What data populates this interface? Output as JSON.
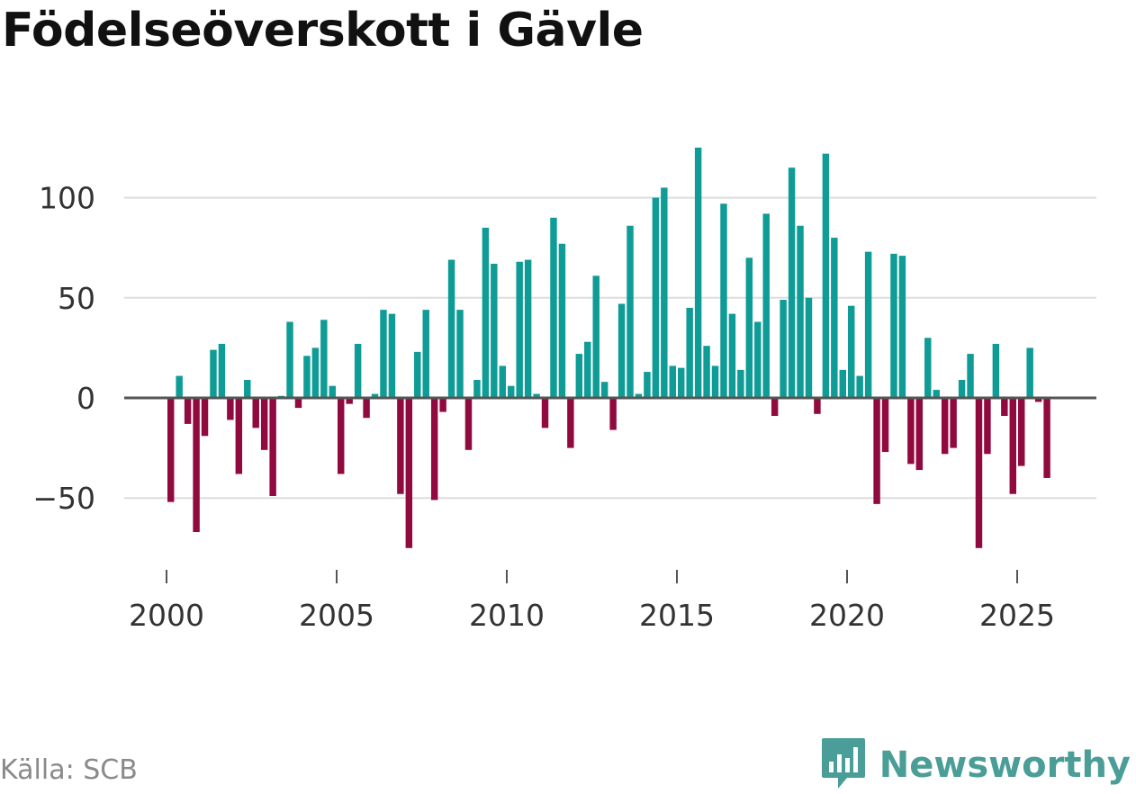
{
  "title": "Födelseöverskott i Gävle",
  "source": "Källa: SCB",
  "brand": {
    "name": "Newsworthy",
    "icon": "newsworthy-logo-icon",
    "color": "#4a9e97"
  },
  "colors": {
    "positive": "#0f9c96",
    "negative": "#910a3f",
    "grid": "#dddddd",
    "zero": "#555555",
    "text": "#333333"
  },
  "chart_data": {
    "type": "bar",
    "grid": true,
    "ylim": [
      -80,
      128
    ],
    "xlim": [
      1999.0,
      2027.0
    ],
    "x_ticks": [
      "2000",
      "2005",
      "2010",
      "2015",
      "2020",
      "2025"
    ],
    "y_ticks": [
      "100",
      "50",
      "0",
      "−50"
    ],
    "x": [
      2000.25,
      2000.5,
      2000.75,
      2001,
      2001.25,
      2001.5,
      2001.75,
      2002,
      2002.25,
      2002.5,
      2002.75,
      2003,
      2003.25,
      2003.5,
      2003.75,
      2004,
      2004.25,
      2004.5,
      2004.75,
      2005,
      2005.25,
      2005.5,
      2005.75,
      2006,
      2006.25,
      2006.5,
      2006.75,
      2007,
      2007.25,
      2007.5,
      2007.75,
      2008,
      2008.25,
      2008.5,
      2008.75,
      2009,
      2009.25,
      2009.5,
      2009.75,
      2010,
      2010.25,
      2010.5,
      2010.75,
      2011,
      2011.25,
      2011.5,
      2011.75,
      2012,
      2012.25,
      2012.5,
      2012.75,
      2013,
      2013.25,
      2013.5,
      2013.75,
      2014,
      2014.25,
      2014.5,
      2014.75,
      2015,
      2015.25,
      2015.5,
      2015.75,
      2016,
      2016.25,
      2016.5,
      2016.75,
      2017,
      2017.25,
      2017.5,
      2017.75,
      2018,
      2018.25,
      2018.5,
      2018.75,
      2019,
      2019.25,
      2019.5,
      2019.75,
      2020,
      2020.25,
      2020.5,
      2020.75,
      2021,
      2021.25,
      2021.5,
      2021.75,
      2022,
      2022.25,
      2022.5,
      2022.75,
      2023,
      2023.25,
      2023.5,
      2023.75,
      2024,
      2024.25,
      2024.5,
      2024.75,
      2025,
      2025.25,
      2025.5,
      2025.75,
      2026
    ],
    "values": [
      -52,
      11,
      -13,
      -67,
      -19,
      24,
      27,
      -11,
      -38,
      9,
      -15,
      -26,
      -49,
      1,
      38,
      -5,
      21,
      25,
      39,
      6,
      -38,
      -3,
      27,
      -10,
      2,
      44,
      42,
      -48,
      -75,
      23,
      44,
      -51,
      -7,
      69,
      44,
      -26,
      9,
      85,
      67,
      16,
      6,
      68,
      69,
      2,
      -15,
      90,
      77,
      -25,
      22,
      28,
      61,
      8,
      -16,
      47,
      86,
      2,
      13,
      100,
      105,
      16,
      15,
      45,
      125,
      26,
      16,
      97,
      42,
      14,
      70,
      38,
      92,
      -9,
      49,
      115,
      86,
      50,
      -8,
      122,
      80,
      14,
      46,
      11,
      73,
      -53,
      -27,
      72,
      71,
      -33,
      -36,
      30,
      4,
      -28,
      -25,
      9,
      22,
      -75,
      -28,
      27,
      -9,
      -48,
      -34,
      25,
      -2,
      -40
    ]
  }
}
